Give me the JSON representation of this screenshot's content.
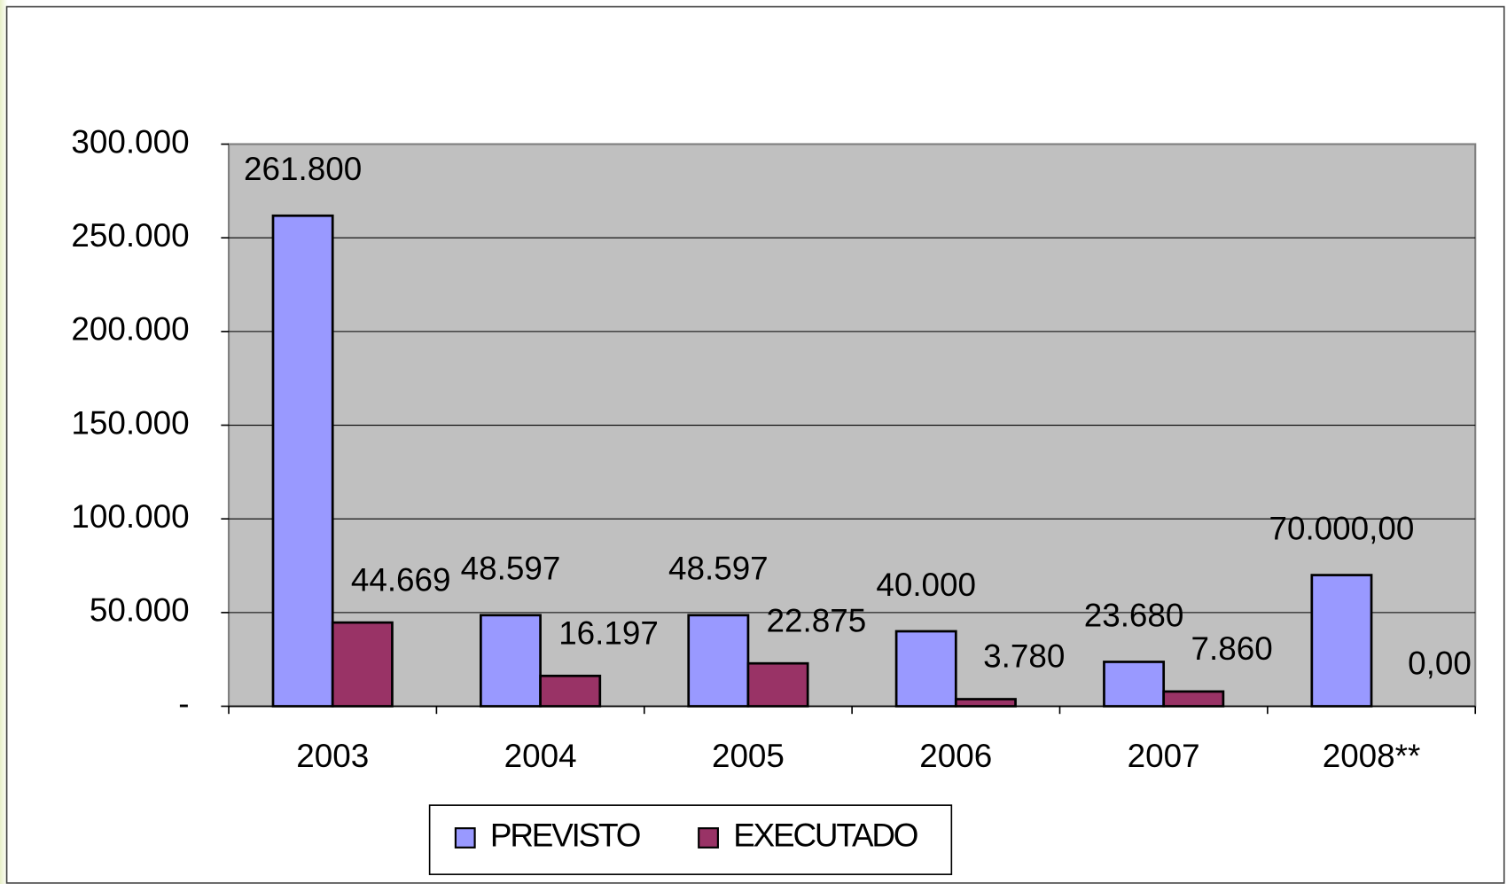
{
  "chart_data": {
    "type": "bar",
    "categories": [
      "2003",
      "2004",
      "2005",
      "2006",
      "2007",
      "2008**"
    ],
    "series": [
      {
        "name": "PREVISTO",
        "color": "#9999ff",
        "values": [
          261800,
          48597,
          48597,
          40000,
          23680,
          70000
        ],
        "value_labels": [
          "261.800",
          "48.597",
          "48.597",
          "40.000",
          "23.680",
          "70.000,00"
        ]
      },
      {
        "name": "EXECUTADO",
        "color": "#993366",
        "values": [
          44669,
          16197,
          22875,
          3780,
          7860,
          0
        ],
        "value_labels": [
          "44.669",
          "16.197",
          "22.875",
          "3.780",
          "7.860",
          "0,00"
        ]
      }
    ],
    "ylim": [
      0,
      300000
    ],
    "yticks": [
      {
        "value": 0,
        "label": "-"
      },
      {
        "value": 50000,
        "label": "50.000"
      },
      {
        "value": 100000,
        "label": "100.000"
      },
      {
        "value": 150000,
        "label": "150.000"
      },
      {
        "value": 200000,
        "label": "200.000"
      },
      {
        "value": 250000,
        "label": "250.000"
      },
      {
        "value": 300000,
        "label": "300.000"
      }
    ],
    "grid": true,
    "legend": "bottom"
  }
}
